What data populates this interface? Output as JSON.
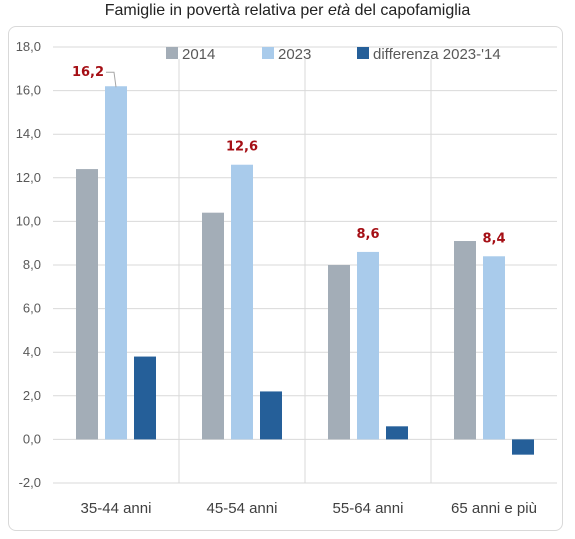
{
  "title": {
    "before": "Famiglie in povertà relativa per ",
    "emph": "età",
    "after": " del capofamiglia"
  },
  "colors": {
    "s2014": "#a3adb7",
    "s2023": "#a9cbeb",
    "diff": "#255f99",
    "label": "#a50f15",
    "grid": "#d9d9d9"
  },
  "chart_data": {
    "type": "bar",
    "categories": [
      "35-44 anni",
      "45-54 anni",
      "55-64 anni",
      "65 anni e più"
    ],
    "series": [
      {
        "name": "2014",
        "values": [
          12.4,
          10.4,
          8.0,
          9.1
        ]
      },
      {
        "name": "2023",
        "values": [
          16.2,
          12.6,
          8.6,
          8.4
        ]
      },
      {
        "name": "differenza 2023-'14",
        "values": [
          3.8,
          2.2,
          0.6,
          -0.7
        ]
      }
    ],
    "data_labels": {
      "series": "2023",
      "texts": [
        "16,2",
        "12,6",
        "8,6",
        "8,4"
      ]
    },
    "ylim": [
      -2.0,
      18.0
    ],
    "yticks": [
      "-2,0",
      "0,0",
      "2,0",
      "4,0",
      "6,0",
      "8,0",
      "10,0",
      "12,0",
      "14,0",
      "16,0",
      "18,0"
    ],
    "ytick_values": [
      -2,
      0,
      2,
      4,
      6,
      8,
      10,
      12,
      14,
      16,
      18
    ],
    "legend": "top",
    "grid": true,
    "xlabel": "",
    "ylabel": ""
  }
}
